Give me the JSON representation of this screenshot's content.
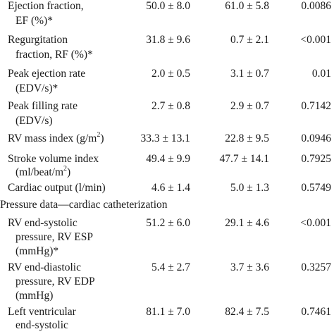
{
  "rows": [
    {
      "label_lines": [
        "Ejection fraction,",
        "EF (%)*"
      ],
      "col1": "50.0 ± 8.0",
      "col2": "61.0 ± 5.8",
      "p": "0.0086"
    },
    {
      "label_lines": [
        "Regurgitation",
        "fraction, RF (%)*"
      ],
      "col1": "31.8 ± 9.6",
      "col2": "0.7 ± 2.1",
      "p": "<0.001"
    },
    {
      "label_lines": [
        "Peak ejection rate",
        "(EDV/s)*"
      ],
      "col1": "2.0 ± 0.5",
      "col2": "3.1 ± 0.7",
      "p": "0.01"
    },
    {
      "label_lines": [
        "Peak filling rate",
        "(EDV/s)"
      ],
      "col1": "2.7 ± 0.8",
      "col2": "2.9 ± 0.7",
      "p": "0.7142"
    },
    {
      "label_lines": [
        "RV mass index (g/m",
        ")"
      ],
      "label_sup": "2",
      "col1": "33.3 ± 13.1",
      "col2": "22.8 ± 9.5",
      "p": "0.0946"
    },
    {
      "label_lines": [
        "Stroke volume index",
        "(ml/beat/m",
        ")"
      ],
      "label_sup": "2",
      "col1": "49.4 ± 9.9",
      "col2": "47.7 ± 14.1",
      "p": "0.7925"
    },
    {
      "label_lines": [
        "Cardiac output (l/min)"
      ],
      "col1": "4.6 ± 1.4",
      "col2": "5.0 ± 1.3",
      "p": "0.5749"
    },
    {
      "section": "Pressure data—cardiac catheterization"
    },
    {
      "label_lines": [
        "RV end-systolic",
        "pressure, RV ESP",
        "(mmHg)*"
      ],
      "col1": "51.2 ± 6.0",
      "col2": "29.1 ± 4.6",
      "p": "<0.001"
    },
    {
      "label_lines": [
        "RV end-diastolic",
        "pressure, RV EDP",
        "(mmHg)"
      ],
      "col1": "5.4 ± 2.7",
      "col2": "3.7 ± 3.6",
      "p": "0.3257"
    },
    {
      "label_lines": [
        "Left ventricular",
        "end-systolic"
      ],
      "col1": "81.1 ± 7.0",
      "col2": "82.4 ± 7.5",
      "p": "0.7461"
    }
  ]
}
